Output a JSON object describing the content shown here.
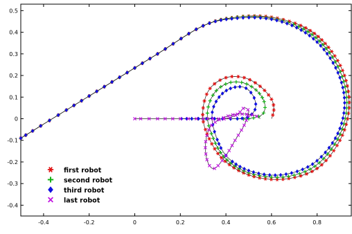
{
  "chart_data": {
    "type": "line",
    "title": "",
    "xlabel": "",
    "ylabel": "",
    "xlim": [
      -0.5,
      0.95
    ],
    "ylim": [
      -0.45,
      0.53
    ],
    "xticks": [
      -0.4,
      -0.2,
      0,
      0.2,
      0.4,
      0.6,
      0.8
    ],
    "yticks": [
      -0.4,
      -0.3,
      -0.2,
      -0.1,
      0,
      0.1,
      0.2,
      0.3,
      0.4,
      0.5
    ],
    "xtick_labels": [
      "-0.4",
      "-0.2",
      "0",
      "0.2",
      "0.4",
      "0.6",
      "0.8"
    ],
    "ytick_labels": [
      "-0.4",
      "-0.3",
      "-0.2",
      "-0.1",
      "0",
      "0.1",
      "0.2",
      "0.3",
      "0.4",
      "0.5"
    ],
    "grid": false,
    "legend_position": "bottom-left",
    "series": [
      {
        "name": "first robot",
        "color": "#e01010",
        "marker": "asterisk",
        "x": [
          -0.5,
          -0.3,
          -0.1,
          0.1,
          0.3,
          0.45,
          0.6,
          0.75,
          0.85,
          0.92,
          0.94,
          0.9,
          0.8,
          0.65,
          0.5,
          0.38,
          0.31,
          0.3,
          0.33,
          0.4,
          0.48,
          0.55,
          0.6,
          0.61,
          0.6
        ],
        "y": [
          -0.09,
          0.04,
          0.17,
          0.3,
          0.43,
          0.47,
          0.47,
          0.42,
          0.33,
          0.2,
          0.05,
          -0.1,
          -0.23,
          -0.28,
          -0.26,
          -0.18,
          -0.05,
          0.05,
          0.14,
          0.19,
          0.19,
          0.15,
          0.09,
          0.04,
          0.0
        ]
      },
      {
        "name": "second robot",
        "color": "#10b010",
        "marker": "plus",
        "x": [
          -0.5,
          -0.3,
          -0.1,
          0.1,
          0.3,
          0.45,
          0.6,
          0.74,
          0.84,
          0.91,
          0.93,
          0.89,
          0.79,
          0.65,
          0.5,
          0.39,
          0.33,
          0.32,
          0.35,
          0.41,
          0.48,
          0.54,
          0.57,
          0.56,
          0.5,
          0.45,
          0.35,
          0.25
        ],
        "y": [
          -0.09,
          0.04,
          0.17,
          0.3,
          0.43,
          0.47,
          0.465,
          0.415,
          0.325,
          0.195,
          0.05,
          -0.095,
          -0.22,
          -0.27,
          -0.25,
          -0.175,
          -0.05,
          0.04,
          0.12,
          0.165,
          0.165,
          0.125,
          0.07,
          0.02,
          0.0,
          0.0,
          0.0,
          0.0
        ]
      },
      {
        "name": "third robot",
        "color": "#1010e0",
        "marker": "diamond",
        "x": [
          -0.5,
          -0.3,
          -0.1,
          0.1,
          0.3,
          0.45,
          0.6,
          0.73,
          0.83,
          0.9,
          0.92,
          0.88,
          0.78,
          0.64,
          0.5,
          0.4,
          0.35,
          0.34,
          0.37,
          0.42,
          0.48,
          0.52,
          0.53,
          0.5,
          0.45,
          0.35,
          0.25,
          0.2
        ],
        "y": [
          -0.09,
          0.04,
          0.17,
          0.3,
          0.43,
          0.465,
          0.46,
          0.41,
          0.32,
          0.19,
          0.05,
          -0.09,
          -0.21,
          -0.26,
          -0.24,
          -0.17,
          -0.06,
          0.03,
          0.1,
          0.14,
          0.145,
          0.105,
          0.05,
          0.01,
          0.0,
          0.0,
          0.0,
          0.0
        ]
      },
      {
        "name": "last robot",
        "color": "#c010e0",
        "marker": "cross",
        "x": [
          0.0,
          0.1,
          0.2,
          0.3,
          0.35,
          0.4,
          0.45,
          0.48,
          0.5,
          0.48,
          0.44,
          0.4,
          0.35,
          0.32,
          0.31,
          0.33,
          0.38,
          0.44,
          0.5,
          0.54,
          0.55
        ],
        "y": [
          0.0,
          0.0,
          0.0,
          0.0,
          0.0,
          0.0,
          0.02,
          0.05,
          0.03,
          -0.03,
          -0.1,
          -0.17,
          -0.23,
          -0.2,
          -0.12,
          -0.04,
          0.0,
          0.02,
          0.02,
          0.01,
          0.0
        ]
      }
    ]
  }
}
